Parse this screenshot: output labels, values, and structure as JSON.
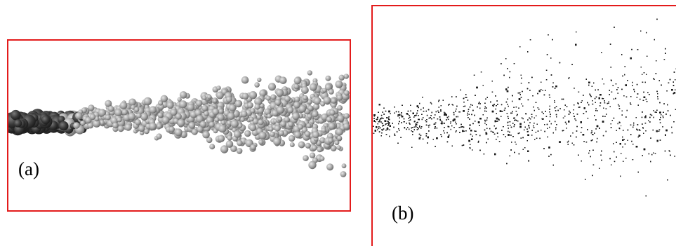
{
  "panels": [
    {
      "label": "(a)",
      "frame_color": "#e31b1b",
      "content": "spray-droplet-rendering"
    },
    {
      "label": "(b)",
      "frame_color": "#e31b1b",
      "content": "spray-particle-scatter"
    }
  ],
  "colors": {
    "frame": "#e31b1b",
    "background": "#ffffff",
    "droplet_dark": "#3a3a3a",
    "droplet_light": "#a8a8a8",
    "particle": "#1a1a1a"
  }
}
